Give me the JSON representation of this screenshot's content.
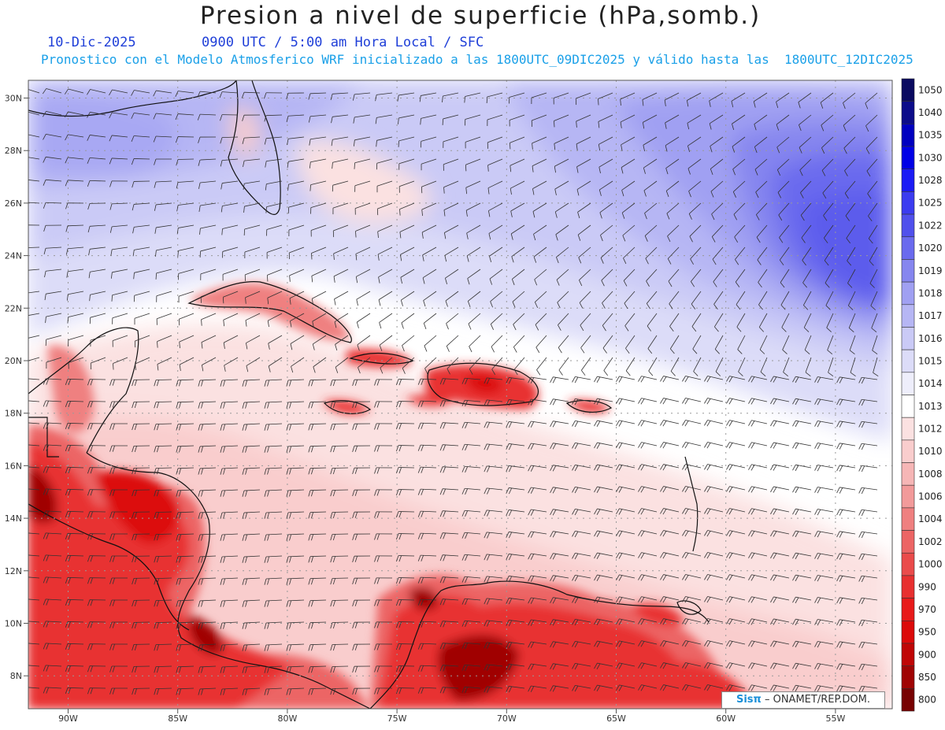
{
  "header": {
    "title": "Presion a nivel de superficie (hPa,somb.)",
    "date": "10-Dic-2025",
    "time": "0900 UTC / 5:00 am Hora Local / SFC",
    "forecast_info": "Pronostico con el Modelo Atmosferico WRF inicializado a las 1800UTC_09DIC2025 y válido hasta las  1800UTC_12DIC2025"
  },
  "axes": {
    "lat_labels": [
      "30N",
      "28N",
      "26N",
      "24N",
      "22N",
      "20N",
      "18N",
      "16N",
      "14N",
      "12N",
      "10N",
      "8N"
    ],
    "lon_labels": [
      "90W",
      "85W",
      "80W",
      "75W",
      "70W",
      "65W",
      "60W",
      "55W"
    ]
  },
  "colorbar": {
    "levels": [
      "1050",
      "1040",
      "1035",
      "1030",
      "1028",
      "1025",
      "1022",
      "1020",
      "1019",
      "1018",
      "1017",
      "1016",
      "1015",
      "1014",
      "1013",
      "1012",
      "1010",
      "1008",
      "1006",
      "1004",
      "1002",
      "1000",
      "990",
      "970",
      "950",
      "900",
      "850",
      "800"
    ],
    "colors": [
      "#0a0a60",
      "#0c0c8a",
      "#0000c0",
      "#0000e6",
      "#1b1bf5",
      "#3c3cf0",
      "#5050ec",
      "#6a6aee",
      "#8686ef",
      "#a0a0f2",
      "#b6b6f4",
      "#cacaf6",
      "#dcdcf8",
      "#eeeefb",
      "#ffffff",
      "#fbe1e1",
      "#f9cdcd",
      "#f6b6b6",
      "#f29a9a",
      "#ef8080",
      "#ec6565",
      "#ea4b4b",
      "#e83030",
      "#e81a1a",
      "#dc0a0a",
      "#c00606",
      "#a00404",
      "#780202"
    ]
  },
  "credit": {
    "brand": "Sisπ",
    "org": "– ONAMET/REP.DOM."
  }
}
